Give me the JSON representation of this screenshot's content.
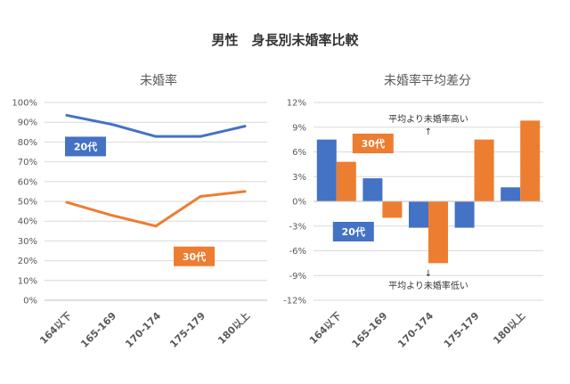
{
  "title": "男性　身長別未婚率比較",
  "colors": {
    "s20": "#4472C4",
    "s30": "#ED7D31",
    "grid": "#D9D9D9",
    "axis": "#BFBFBF",
    "text": "#595959"
  },
  "chart_data": [
    {
      "type": "line",
      "title": "未婚率",
      "categories": [
        "164以下",
        "165-169",
        "170-174",
        "175-179",
        "180以上"
      ],
      "ylim": [
        0,
        100
      ],
      "yticks": [
        "0%",
        "10%",
        "20%",
        "30%",
        "40%",
        "50%",
        "60%",
        "70%",
        "80%",
        "90%",
        "100%"
      ],
      "grid": true,
      "series": [
        {
          "name": "20代",
          "values": [
            93.5,
            89.0,
            82.8,
            82.8,
            88.0
          ]
        },
        {
          "name": "30代",
          "values": [
            49.5,
            43.0,
            37.5,
            52.5,
            55.0
          ]
        }
      ]
    },
    {
      "type": "bar",
      "title": "未婚率平均差分",
      "categories": [
        "164以下",
        "165-169",
        "170-174",
        "175-179",
        "180以上"
      ],
      "ylim": [
        -12,
        12
      ],
      "yticks": [
        "-12%",
        "-9%",
        "-6%",
        "-3%",
        "0%",
        "3%",
        "6%",
        "9%",
        "12%"
      ],
      "grid": true,
      "series": [
        {
          "name": "20代",
          "values": [
            7.5,
            2.8,
            -3.2,
            -3.2,
            1.7
          ]
        },
        {
          "name": "30代",
          "values": [
            4.8,
            -2.0,
            -7.5,
            7.5,
            9.8
          ]
        }
      ],
      "annotations": {
        "upper": "平均より未婚率高い",
        "upper_arrow": "↑",
        "lower": "平均より未婚率低い",
        "lower_arrow": "↓"
      }
    }
  ]
}
